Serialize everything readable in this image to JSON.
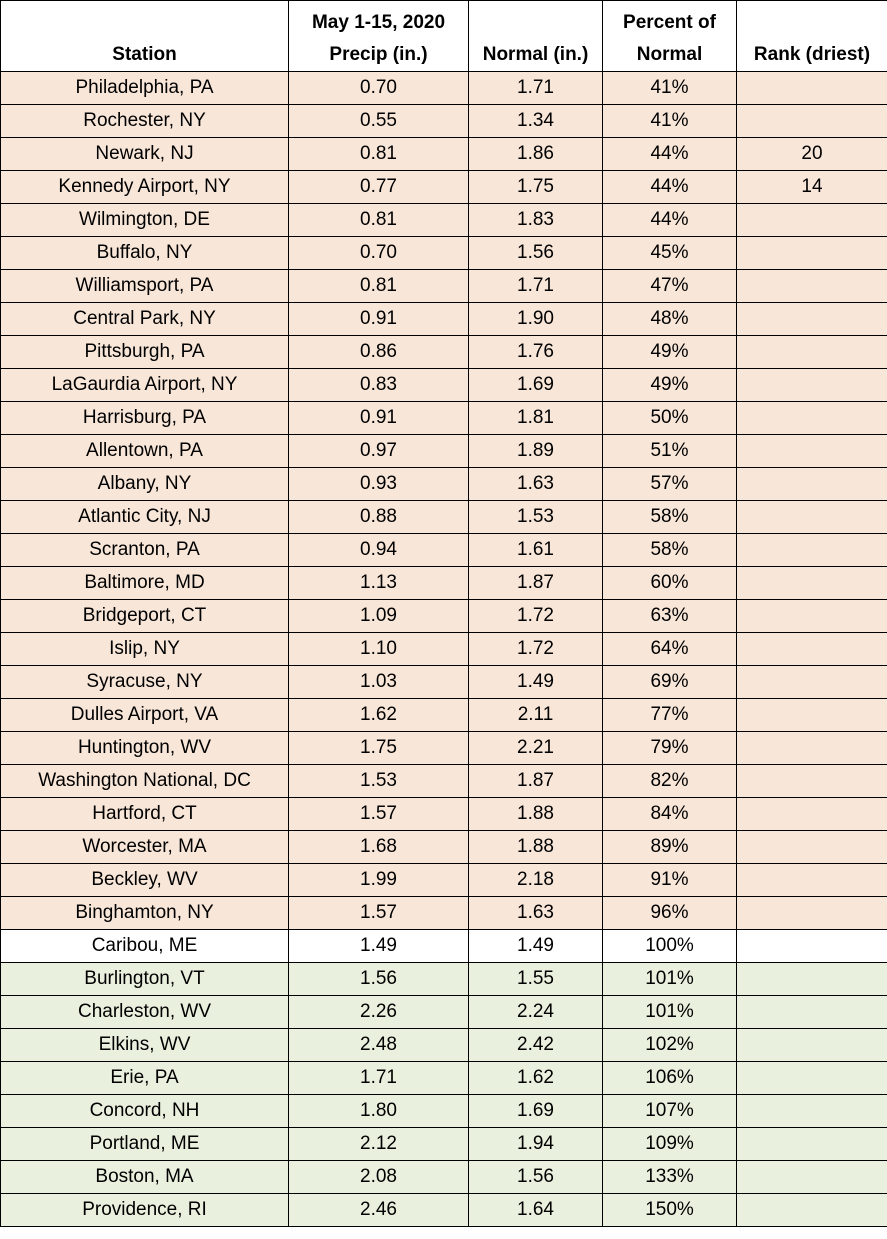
{
  "headers": {
    "station": "Station",
    "precip_line1": "May 1-15, 2020",
    "precip_line2": "Precip (in.)",
    "normal": "Normal (in.)",
    "percent_line1": "Percent of",
    "percent_line2": "Normal",
    "rank": "Rank (driest)"
  },
  "colors": {
    "below_normal": "#f8e6d8",
    "normal": "#ffffff",
    "above_normal": "#eaf0de"
  },
  "rows": [
    {
      "station": "Philadelphia, PA",
      "precip": "0.70",
      "normal": "1.71",
      "percent": "41%",
      "rank": "",
      "category": "dry"
    },
    {
      "station": "Rochester, NY",
      "precip": "0.55",
      "normal": "1.34",
      "percent": "41%",
      "rank": "",
      "category": "dry"
    },
    {
      "station": "Newark, NJ",
      "precip": "0.81",
      "normal": "1.86",
      "percent": "44%",
      "rank": "20",
      "category": "dry"
    },
    {
      "station": "Kennedy Airport, NY",
      "precip": "0.77",
      "normal": "1.75",
      "percent": "44%",
      "rank": "14",
      "category": "dry"
    },
    {
      "station": "Wilmington, DE",
      "precip": "0.81",
      "normal": "1.83",
      "percent": "44%",
      "rank": "",
      "category": "dry"
    },
    {
      "station": "Buffalo, NY",
      "precip": "0.70",
      "normal": "1.56",
      "percent": "45%",
      "rank": "",
      "category": "dry"
    },
    {
      "station": "Williamsport, PA",
      "precip": "0.81",
      "normal": "1.71",
      "percent": "47%",
      "rank": "",
      "category": "dry"
    },
    {
      "station": "Central Park, NY",
      "precip": "0.91",
      "normal": "1.90",
      "percent": "48%",
      "rank": "",
      "category": "dry"
    },
    {
      "station": "Pittsburgh, PA",
      "precip": "0.86",
      "normal": "1.76",
      "percent": "49%",
      "rank": "",
      "category": "dry"
    },
    {
      "station": "LaGaurdia Airport, NY",
      "precip": "0.83",
      "normal": "1.69",
      "percent": "49%",
      "rank": "",
      "category": "dry"
    },
    {
      "station": "Harrisburg, PA",
      "precip": "0.91",
      "normal": "1.81",
      "percent": "50%",
      "rank": "",
      "category": "dry"
    },
    {
      "station": "Allentown, PA",
      "precip": "0.97",
      "normal": "1.89",
      "percent": "51%",
      "rank": "",
      "category": "dry"
    },
    {
      "station": "Albany, NY",
      "precip": "0.93",
      "normal": "1.63",
      "percent": "57%",
      "rank": "",
      "category": "dry"
    },
    {
      "station": "Atlantic City, NJ",
      "precip": "0.88",
      "normal": "1.53",
      "percent": "58%",
      "rank": "",
      "category": "dry"
    },
    {
      "station": "Scranton, PA",
      "precip": "0.94",
      "normal": "1.61",
      "percent": "58%",
      "rank": "",
      "category": "dry"
    },
    {
      "station": "Baltimore, MD",
      "precip": "1.13",
      "normal": "1.87",
      "percent": "60%",
      "rank": "",
      "category": "dry"
    },
    {
      "station": "Bridgeport, CT",
      "precip": "1.09",
      "normal": "1.72",
      "percent": "63%",
      "rank": "",
      "category": "dry"
    },
    {
      "station": "Islip, NY",
      "precip": "1.10",
      "normal": "1.72",
      "percent": "64%",
      "rank": "",
      "category": "dry"
    },
    {
      "station": "Syracuse, NY",
      "precip": "1.03",
      "normal": "1.49",
      "percent": "69%",
      "rank": "",
      "category": "dry"
    },
    {
      "station": "Dulles Airport, VA",
      "precip": "1.62",
      "normal": "2.11",
      "percent": "77%",
      "rank": "",
      "category": "dry"
    },
    {
      "station": "Huntington, WV",
      "precip": "1.75",
      "normal": "2.21",
      "percent": "79%",
      "rank": "",
      "category": "dry"
    },
    {
      "station": "Washington National, DC",
      "precip": "1.53",
      "normal": "1.87",
      "percent": "82%",
      "rank": "",
      "category": "dry"
    },
    {
      "station": "Hartford, CT",
      "precip": "1.57",
      "normal": "1.88",
      "percent": "84%",
      "rank": "",
      "category": "dry"
    },
    {
      "station": "Worcester, MA",
      "precip": "1.68",
      "normal": "1.88",
      "percent": "89%",
      "rank": "",
      "category": "dry"
    },
    {
      "station": "Beckley, WV",
      "precip": "1.99",
      "normal": "2.18",
      "percent": "91%",
      "rank": "",
      "category": "dry"
    },
    {
      "station": "Binghamton, NY",
      "precip": "1.57",
      "normal": "1.63",
      "percent": "96%",
      "rank": "",
      "category": "dry"
    },
    {
      "station": "Caribou, ME",
      "precip": "1.49",
      "normal": "1.49",
      "percent": "100%",
      "rank": "",
      "category": "neutral"
    },
    {
      "station": "Burlington, VT",
      "precip": "1.56",
      "normal": "1.55",
      "percent": "101%",
      "rank": "",
      "category": "wet"
    },
    {
      "station": "Charleston, WV",
      "precip": "2.26",
      "normal": "2.24",
      "percent": "101%",
      "rank": "",
      "category": "wet"
    },
    {
      "station": "Elkins, WV",
      "precip": "2.48",
      "normal": "2.42",
      "percent": "102%",
      "rank": "",
      "category": "wet"
    },
    {
      "station": "Erie, PA",
      "precip": "1.71",
      "normal": "1.62",
      "percent": "106%",
      "rank": "",
      "category": "wet"
    },
    {
      "station": "Concord, NH",
      "precip": "1.80",
      "normal": "1.69",
      "percent": "107%",
      "rank": "",
      "category": "wet"
    },
    {
      "station": "Portland, ME",
      "precip": "2.12",
      "normal": "1.94",
      "percent": "109%",
      "rank": "",
      "category": "wet"
    },
    {
      "station": "Boston, MA",
      "precip": "2.08",
      "normal": "1.56",
      "percent": "133%",
      "rank": "",
      "category": "wet"
    },
    {
      "station": "Providence, RI",
      "precip": "2.46",
      "normal": "1.64",
      "percent": "150%",
      "rank": "",
      "category": "wet"
    }
  ]
}
